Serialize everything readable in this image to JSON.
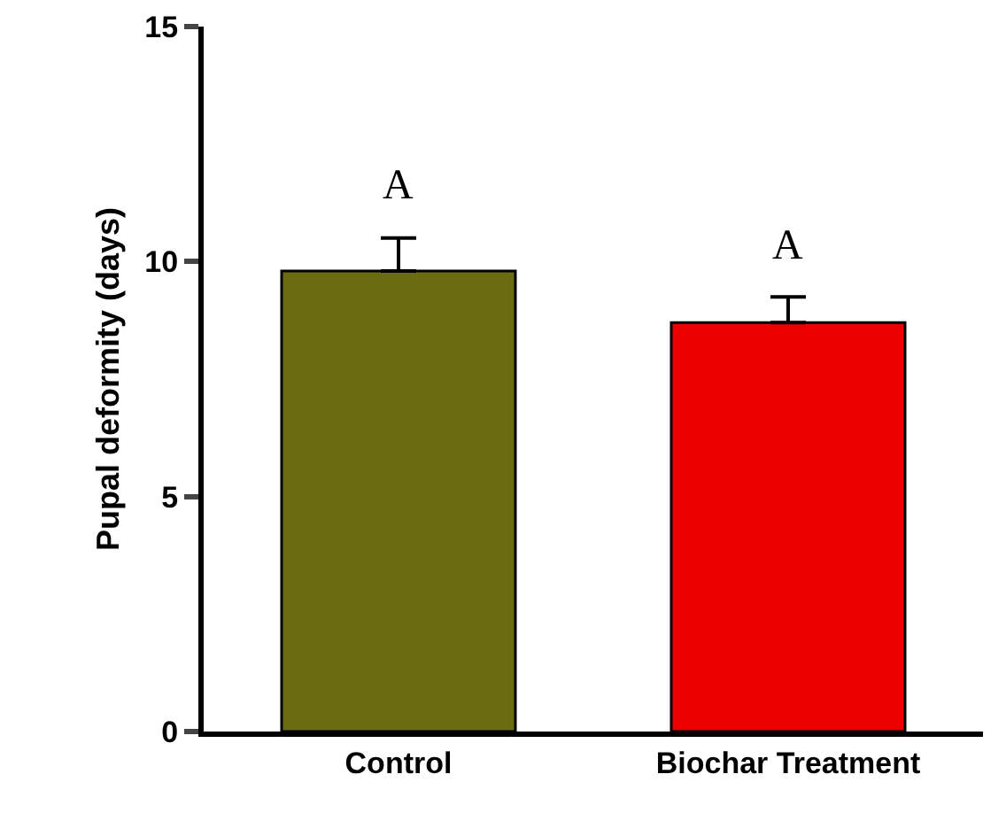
{
  "chart_data": {
    "type": "bar",
    "ylabel": "Pupal deformity (days)",
    "categories": [
      "Control",
      "Biochar Treatment"
    ],
    "values": [
      9.8,
      8.7
    ],
    "colors": [
      "#6b6b10",
      "#ee0000"
    ],
    "errors": [
      [
        9.8,
        10.5
      ],
      [
        8.7,
        9.25
      ]
    ],
    "ylim": [
      0,
      15
    ],
    "yticks": [
      0,
      5,
      10,
      15
    ],
    "grid": false,
    "annotations": [
      "A",
      "A"
    ]
  }
}
